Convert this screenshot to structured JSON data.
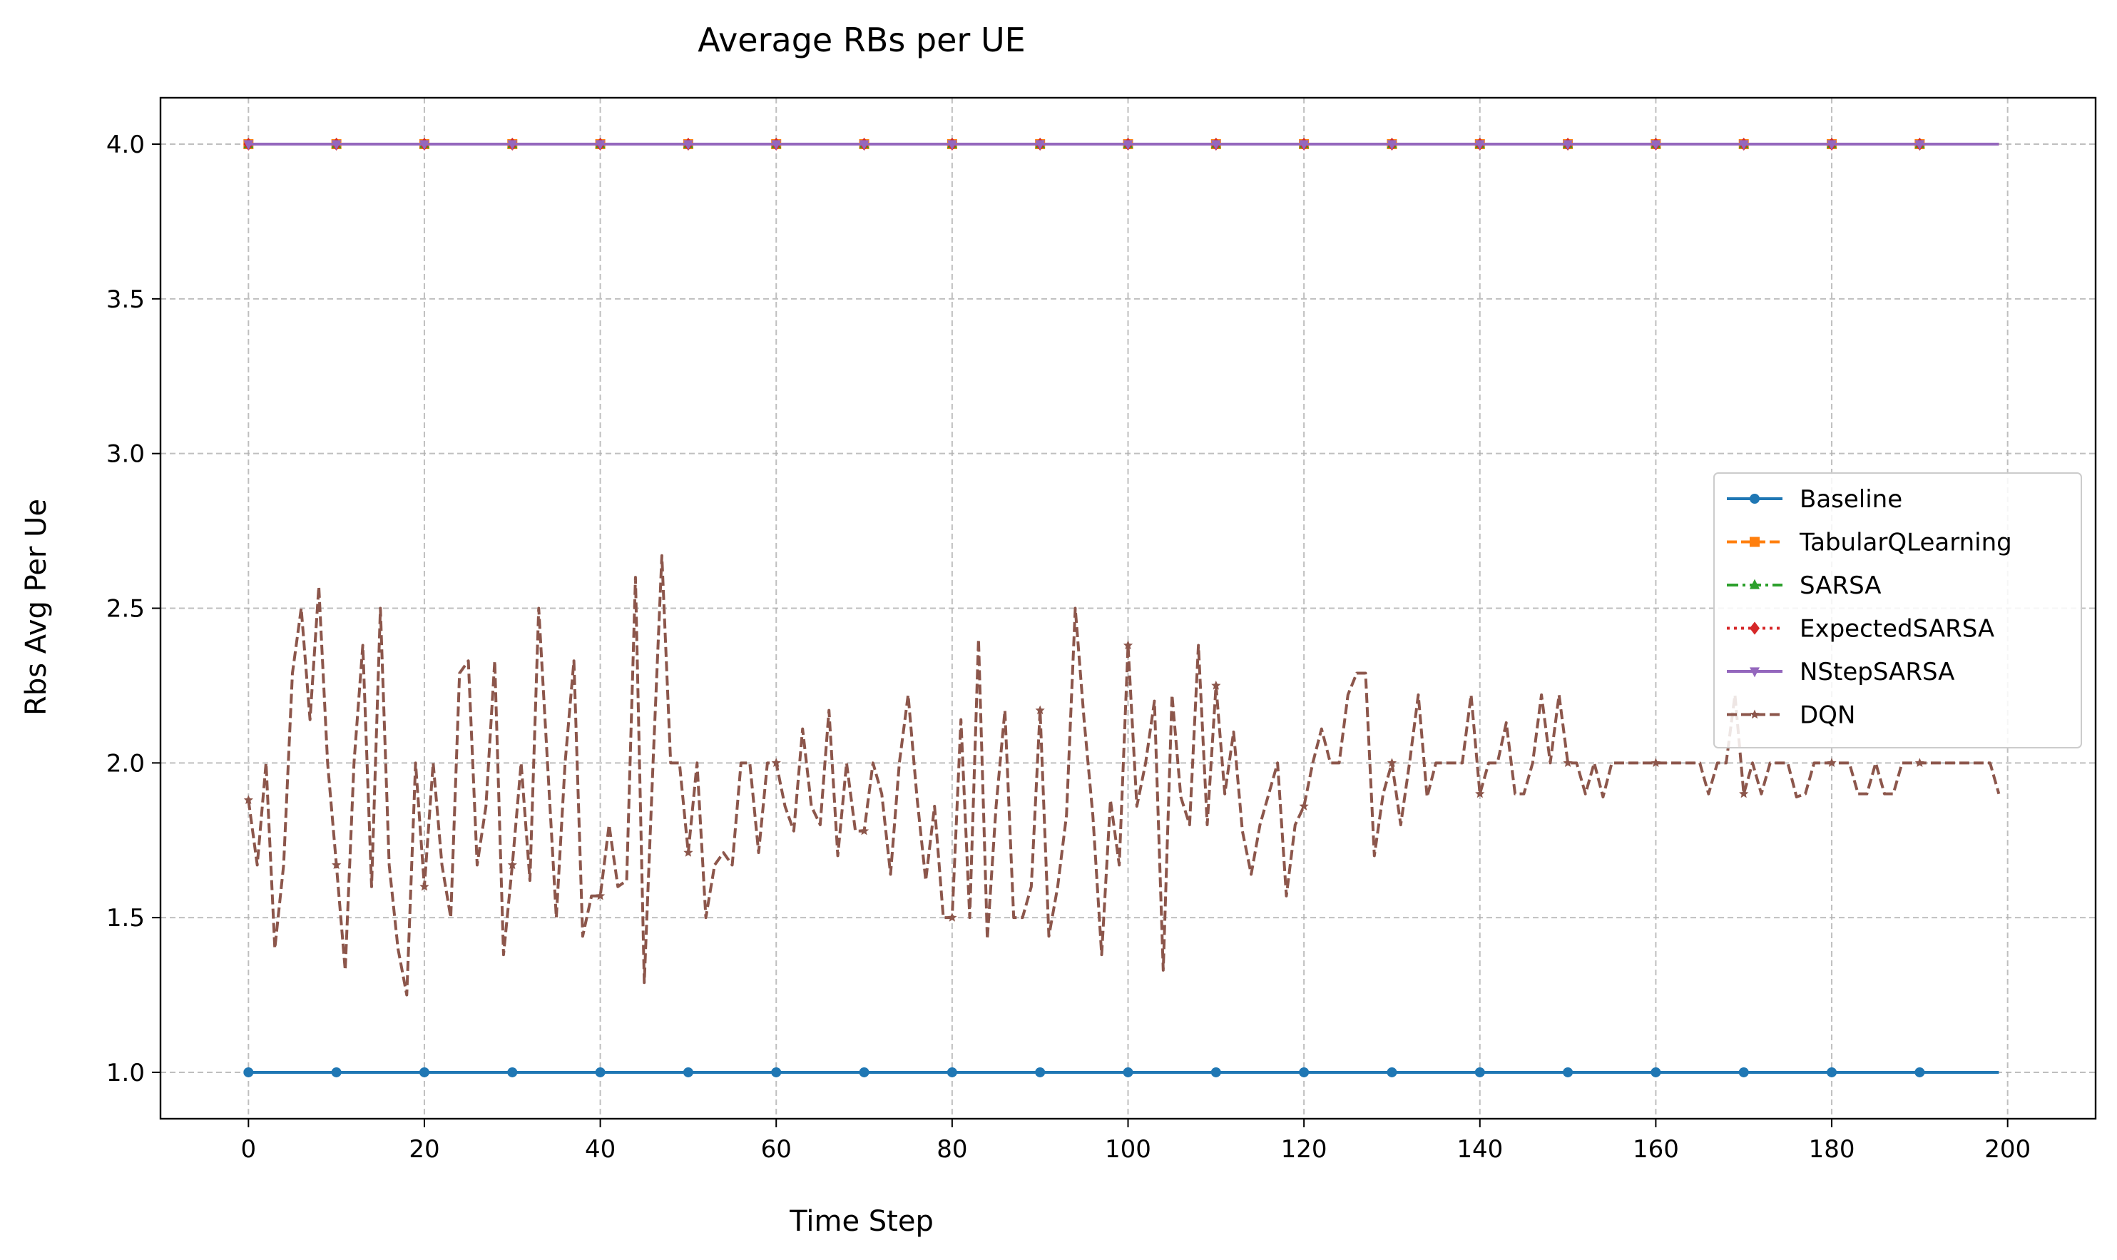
{
  "chart_data": {
    "type": "line",
    "title": "Average RBs per UE",
    "xlabel": "Time Step",
    "ylabel": "Rbs Avg Per Ue",
    "xlim": [
      -10,
      210
    ],
    "ylim": [
      0.85,
      4.15
    ],
    "xticks": [
      0,
      20,
      40,
      60,
      80,
      100,
      120,
      140,
      160,
      180,
      200
    ],
    "xtick_labels": [
      "0",
      "20",
      "40",
      "60",
      "80",
      "100",
      "120",
      "140",
      "160",
      "180",
      "200"
    ],
    "yticks": [
      1.0,
      1.5,
      2.0,
      2.5,
      3.0,
      3.5,
      4.0
    ],
    "ytick_labels": [
      "1.0",
      "1.5",
      "2.0",
      "2.5",
      "3.0",
      "3.5",
      "4.0"
    ],
    "grid": true,
    "legend_position": "center-right",
    "x_start": 0,
    "x_end": 199,
    "marker_every": 10,
    "series": [
      {
        "name": "Baseline",
        "color": "#1f77b4",
        "dash": "solid",
        "marker": "circle",
        "constant": 1.0
      },
      {
        "name": "TabularQLearning",
        "color": "#ff7f0e",
        "dash": "dashed",
        "marker": "square",
        "constant": 4.0
      },
      {
        "name": "SARSA",
        "color": "#2ca02c",
        "dash": "dashdot",
        "marker": "triangle-up",
        "constant": 4.0
      },
      {
        "name": "ExpectedSARSA",
        "color": "#d62728",
        "dash": "dotted",
        "marker": "diamond",
        "constant": 4.0
      },
      {
        "name": "NStepSARSA",
        "color": "#9467bd",
        "dash": "solid",
        "marker": "triangle-down",
        "constant": 4.0
      },
      {
        "name": "DQN",
        "color": "#8c564b",
        "dash": "dashed",
        "marker": "star",
        "values": [
          1.88,
          1.67,
          2.0,
          1.4,
          1.67,
          2.29,
          2.5,
          2.14,
          2.57,
          2.0,
          1.67,
          1.33,
          2.0,
          2.38,
          1.6,
          2.5,
          1.67,
          1.4,
          1.25,
          2.0,
          1.6,
          2.0,
          1.67,
          1.5,
          2.29,
          2.33,
          1.67,
          1.86,
          2.33,
          1.38,
          1.67,
          2.0,
          1.62,
          2.5,
          2.0,
          1.5,
          2.0,
          2.33,
          1.44,
          1.57,
          1.57,
          1.8,
          1.6,
          1.62,
          2.6,
          1.29,
          2.0,
          2.67,
          2.0,
          2.0,
          1.71,
          2.0,
          1.5,
          1.67,
          1.71,
          1.67,
          2.0,
          2.0,
          1.71,
          2.0,
          2.0,
          1.86,
          1.78,
          2.11,
          1.86,
          1.8,
          2.17,
          1.7,
          2.0,
          1.78,
          1.78,
          2.0,
          1.9,
          1.64,
          2.0,
          2.22,
          1.89,
          1.62,
          1.86,
          1.5,
          1.5,
          2.14,
          1.5,
          2.4,
          1.43,
          1.86,
          2.17,
          1.5,
          1.5,
          1.6,
          2.17,
          1.44,
          1.6,
          1.83,
          2.5,
          2.14,
          1.83,
          1.38,
          1.88,
          1.67,
          2.38,
          1.86,
          2.0,
          2.2,
          1.33,
          2.22,
          1.89,
          1.8,
          2.38,
          1.8,
          2.25,
          1.9,
          2.1,
          1.78,
          1.64,
          1.8,
          1.9,
          2.0,
          1.57,
          1.8,
          1.86,
          2.0,
          2.11,
          2.0,
          2.0,
          2.22,
          2.29,
          2.29,
          1.7,
          1.9,
          2.0,
          1.8,
          2.0,
          2.22,
          1.89,
          2.0,
          2.0,
          2.0,
          2.0,
          2.22,
          1.9,
          2.0,
          2.0,
          2.13,
          1.9,
          1.9,
          2.0,
          2.22,
          2.0,
          2.22,
          2.0,
          2.0,
          1.9,
          2.0,
          1.89,
          2.0,
          2.0,
          2.0,
          2.0,
          2.0,
          2.0,
          2.0,
          2.0,
          2.0,
          2.0,
          2.0,
          1.9,
          2.0,
          2.0,
          2.22,
          1.9,
          2.0,
          1.9,
          2.0,
          2.0,
          2.0,
          1.89,
          1.9,
          2.0,
          2.0,
          2.0,
          2.0,
          2.0,
          1.9,
          1.9,
          2.0,
          1.9,
          1.9,
          2.0,
          2.0,
          2.0,
          2.0,
          2.0,
          2.0,
          2.0,
          2.0,
          2.0,
          2.0,
          2.0,
          1.9
        ]
      }
    ]
  }
}
